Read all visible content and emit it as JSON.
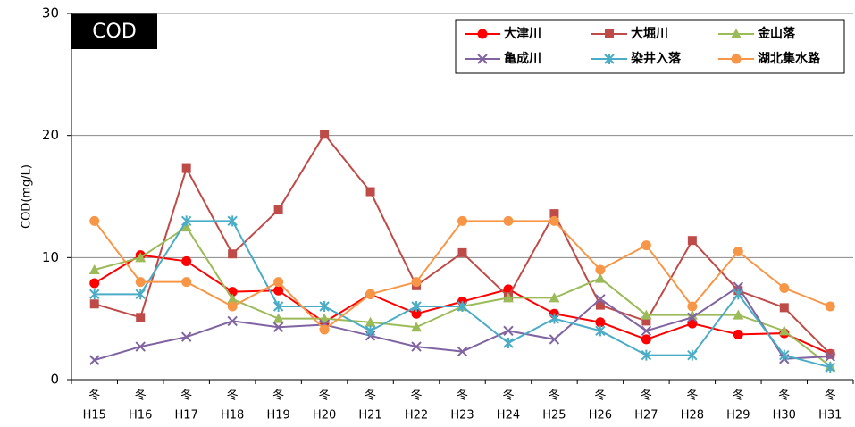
{
  "chart_data": {
    "type": "line",
    "annotation": "COD",
    "y_label": "COD(mg/L)",
    "categories": [
      [
        "冬",
        "H15"
      ],
      [
        "冬",
        "H16"
      ],
      [
        "冬",
        "H17"
      ],
      [
        "冬",
        "H18"
      ],
      [
        "冬",
        "H19"
      ],
      [
        "冬",
        "H20"
      ],
      [
        "冬",
        "H21"
      ],
      [
        "冬",
        "H22"
      ],
      [
        "冬",
        "H23"
      ],
      [
        "冬",
        "H24"
      ],
      [
        "冬",
        "H25"
      ],
      [
        "冬",
        "H26"
      ],
      [
        "冬",
        "H27"
      ],
      [
        "冬",
        "H28"
      ],
      [
        "冬",
        "H29"
      ],
      [
        "冬",
        "H30"
      ],
      [
        "冬",
        "H31"
      ]
    ],
    "ylim": [
      0,
      30
    ],
    "yticks": [
      0,
      10,
      20,
      30
    ],
    "grid": true,
    "series": [
      {
        "name": "大津川",
        "color": "#ff0000",
        "marker": "circle",
        "values": [
          7.9,
          10.2,
          9.7,
          7.2,
          7.3,
          4.7,
          7.0,
          5.4,
          6.4,
          7.4,
          5.4,
          4.7,
          3.3,
          4.6,
          3.7,
          3.8,
          2.1
        ]
      },
      {
        "name": "大堀川",
        "color": "#be4b48",
        "marker": "square",
        "values": [
          6.2,
          5.1,
          17.3,
          10.3,
          13.9,
          20.1,
          15.4,
          7.7,
          10.4,
          6.8,
          13.6,
          6.1,
          4.8,
          11.4,
          7.3,
          5.9,
          2.1
        ]
      },
      {
        "name": "金山落",
        "color": "#9bbb59",
        "marker": "triangle",
        "values": [
          9.0,
          10.0,
          12.5,
          6.6,
          5.0,
          5.0,
          4.7,
          4.3,
          6.0,
          6.7,
          6.7,
          8.3,
          5.3,
          5.3,
          5.3,
          4.0,
          1.1
        ]
      },
      {
        "name": "亀成川",
        "color": "#8064a2",
        "marker": "x",
        "values": [
          1.6,
          2.7,
          3.5,
          4.8,
          4.3,
          4.5,
          3.6,
          2.7,
          2.3,
          4.0,
          3.3,
          6.6,
          4.0,
          5.1,
          7.6,
          1.7,
          1.9
        ]
      },
      {
        "name": "染井入落",
        "color": "#4bacc6",
        "marker": "star",
        "values": [
          7.0,
          7.0,
          13.0,
          13.0,
          6.0,
          6.0,
          4.0,
          6.0,
          6.0,
          3.0,
          5.0,
          4.0,
          2.0,
          2.0,
          7.0,
          2.0,
          1.0
        ]
      },
      {
        "name": "湖北集水路",
        "color": "#f79646",
        "marker": "circle",
        "values": [
          13.0,
          8.0,
          8.0,
          6.0,
          8.0,
          4.1,
          7.0,
          8.0,
          13.0,
          13.0,
          13.0,
          9.0,
          11.0,
          6.0,
          10.5,
          7.5,
          6.0
        ]
      }
    ]
  }
}
